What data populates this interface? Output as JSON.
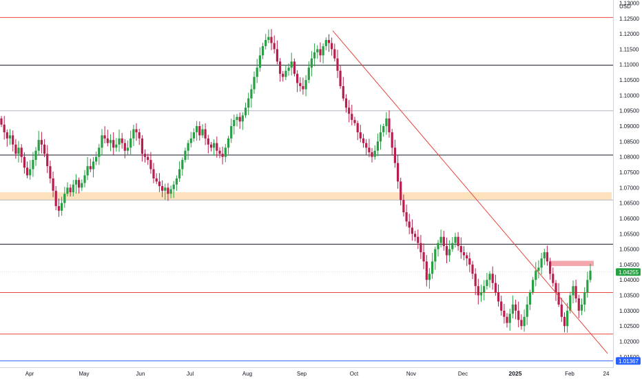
{
  "chart_data": {
    "type": "candlestick",
    "currency": "USD",
    "last_price": "1.04255",
    "blue_line_label": "1.01367",
    "ylim": [
      1.0116,
      1.131
    ],
    "y_ticks": [
      "1.13000",
      "1.12500",
      "1.12000",
      "1.11500",
      "1.11000",
      "1.10500",
      "1.10000",
      "1.09500",
      "1.09000",
      "1.08500",
      "1.08000",
      "1.07500",
      "1.07000",
      "1.06500",
      "1.06000",
      "1.05500",
      "1.05000",
      "1.04500",
      "1.04000",
      "1.03500",
      "1.03000",
      "1.02500",
      "1.02000",
      "1.01500"
    ],
    "x_labels": [
      "Apr",
      "May",
      "Jun",
      "Jul",
      "Aug",
      "Sep",
      "Oct",
      "Nov",
      "Dec",
      "2025",
      "Feb",
      "24"
    ],
    "x_label_bold": "2025",
    "horizontal_lines": [
      {
        "price": 1.1253,
        "color": "#e8453c"
      },
      {
        "price": 1.1098,
        "color": "#131722"
      },
      {
        "price": 1.095,
        "color": "#b2b5be"
      },
      {
        "price": 1.0806,
        "color": "#131722"
      },
      {
        "price": 1.066,
        "color": "#b2b5be"
      },
      {
        "price": 1.0516,
        "color": "#131722"
      },
      {
        "price": 1.0359,
        "color": "#e8453c"
      },
      {
        "price": 1.0224,
        "color": "#e8453c"
      },
      {
        "price": 1.01367,
        "color": "#2962ff"
      }
    ],
    "zones": [
      {
        "from": 1.066,
        "to": 1.0685,
        "color": "#fde2bd"
      },
      {
        "from": 1.0445,
        "to": 1.0462,
        "color": "#f4a6ad"
      }
    ],
    "trendline": {
      "from": {
        "date": "2024-09-25",
        "price": 1.121
      },
      "to": {
        "date": "2025-02-24",
        "price": 1.0161
      },
      "color": "#e8453c"
    },
    "colors": {
      "up": "#26a043",
      "down": "#b81e4d",
      "grid": "#f0f3fa",
      "text": "#131722"
    },
    "closes": [
      1.0905,
      1.088,
      1.086,
      1.087,
      1.084,
      1.081,
      1.083,
      1.08,
      1.0765,
      1.074,
      1.076,
      1.079,
      1.082,
      1.0855,
      1.084,
      1.081,
      1.077,
      1.073,
      1.069,
      1.064,
      1.0625,
      1.065,
      1.068,
      1.07,
      1.0685,
      1.071,
      1.0725,
      1.07,
      1.0715,
      1.074,
      1.077,
      1.076,
      1.0785,
      1.08,
      1.083,
      1.087,
      1.086,
      1.0845,
      1.0855,
      1.083,
      1.084,
      1.086,
      1.0845,
      1.082,
      1.083,
      1.086,
      1.089,
      1.088,
      1.086,
      1.081,
      1.08,
      1.079,
      1.076,
      1.073,
      1.072,
      1.0705,
      1.069,
      1.07,
      1.068,
      1.0695,
      1.071,
      1.073,
      1.076,
      1.079,
      1.082,
      1.0845,
      1.086,
      1.088,
      1.09,
      1.087,
      1.089,
      1.086,
      1.084,
      1.083,
      1.0845,
      1.082,
      1.081,
      1.08,
      1.083,
      1.086,
      1.09,
      1.092,
      1.093,
      1.0915,
      1.0935,
      1.096,
      1.099,
      1.102,
      1.106,
      1.109,
      1.113,
      1.116,
      1.118,
      1.119,
      1.117,
      1.115,
      1.111,
      1.107,
      1.106,
      1.108,
      1.109,
      1.111,
      1.107,
      1.104,
      1.103,
      1.102,
      1.105,
      1.109,
      1.112,
      1.114,
      1.115,
      1.113,
      1.116,
      1.118,
      1.117,
      1.115,
      1.112,
      1.108,
      1.103,
      1.099,
      1.096,
      1.094,
      1.092,
      1.091,
      1.088,
      1.086,
      1.0845,
      1.083,
      1.0815,
      1.08,
      1.082,
      1.085,
      1.088,
      1.09,
      1.0925,
      1.088,
      1.083,
      1.078,
      1.072,
      1.066,
      1.062,
      1.059,
      1.057,
      1.055,
      1.054,
      1.052,
      1.049,
      1.046,
      1.04,
      1.042,
      1.046,
      1.05,
      1.052,
      1.054,
      1.051,
      1.048,
      1.05,
      1.052,
      1.054,
      1.051,
      1.049,
      1.048,
      1.047,
      1.045,
      1.042,
      1.038,
      1.035,
      1.036,
      1.038,
      1.04,
      1.042,
      1.039,
      1.036,
      1.033,
      1.03,
      1.028,
      1.026,
      1.029,
      1.032,
      1.03,
      1.027,
      1.025,
      1.028,
      1.032,
      1.036,
      1.04,
      1.043,
      1.044,
      1.047,
      1.049,
      1.046,
      1.042,
      1.039,
      1.036,
      1.032,
      1.028,
      1.025,
      1.03,
      1.035,
      1.038,
      1.034,
      1.03,
      1.032,
      1.036,
      1.04,
      1.043
    ]
  }
}
